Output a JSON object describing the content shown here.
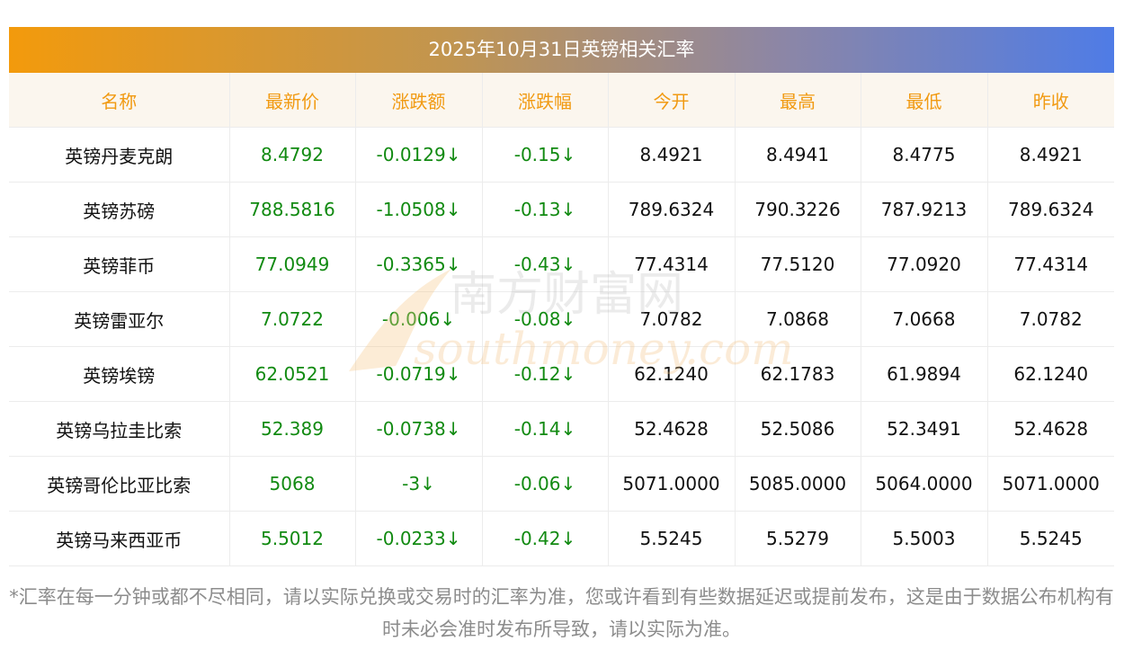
{
  "title": "2025年10月31日英镑相关汇率",
  "columns": [
    "名称",
    "最新价",
    "涨跌额",
    "涨跌幅",
    "今开",
    "最高",
    "最低",
    "昨收"
  ],
  "rows": [
    [
      "英镑丹麦克朗",
      "8.4792",
      "-0.0129↓",
      "-0.15↓",
      "8.4921",
      "8.4941",
      "8.4775",
      "8.4921"
    ],
    [
      "英镑苏磅",
      "788.5816",
      "-1.0508↓",
      "-0.13↓",
      "789.6324",
      "790.3226",
      "787.9213",
      "789.6324"
    ],
    [
      "英镑菲币",
      "77.0949",
      "-0.3365↓",
      "-0.43↓",
      "77.4314",
      "77.5120",
      "77.0920",
      "77.4314"
    ],
    [
      "英镑雷亚尔",
      "7.0722",
      "-0.006↓",
      "-0.08↓",
      "7.0782",
      "7.0868",
      "7.0668",
      "7.0782"
    ],
    [
      "英镑埃镑",
      "62.0521",
      "-0.0719↓",
      "-0.12↓",
      "62.1240",
      "62.1783",
      "61.9894",
      "62.1240"
    ],
    [
      "英镑乌拉圭比索",
      "52.389",
      "-0.0738↓",
      "-0.14↓",
      "52.4628",
      "52.5086",
      "52.3491",
      "52.4628"
    ],
    [
      "英镑哥伦比亚比索",
      "5068",
      "-3↓",
      "-0.06↓",
      "5071.0000",
      "5085.0000",
      "5064.0000",
      "5071.0000"
    ],
    [
      "英镑马来西亚币",
      "5.5012",
      "-0.0233↓",
      "-0.42↓",
      "5.5245",
      "5.5279",
      "5.5003",
      "5.5245"
    ]
  ],
  "footnote": "*汇率在每一分钟或都不尽相同，请以实际兑换或交易时的汇率为准，您或许看到有些数据延迟或提前发布，这是由于数据公布机构有时未必会准时发布所导致，请以实际为准。",
  "watermark": {
    "cn": "南方财富网",
    "en": "southmoney.com"
  },
  "colors": {
    "header_text": "#f19a12",
    "up_down_green": "#118a11",
    "header_bg": "#fbf6ee"
  }
}
